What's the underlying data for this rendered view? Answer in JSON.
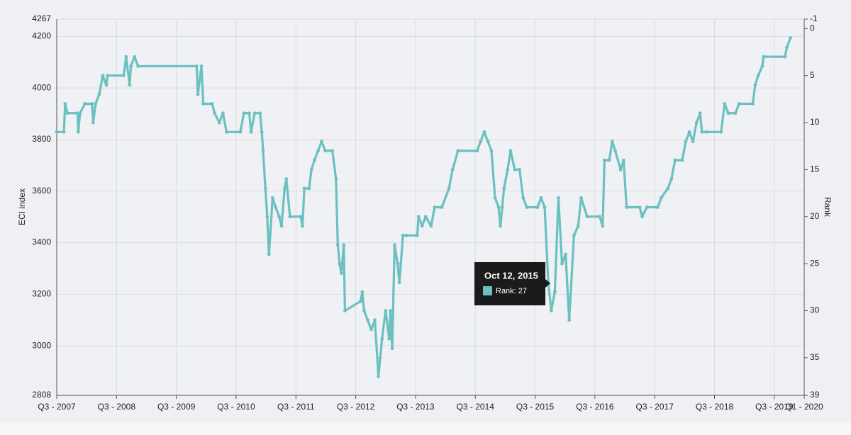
{
  "chart_data": {
    "type": "line",
    "ylabel": "ECI index",
    "y2label": "Rank",
    "xlim": [
      2007.5,
      2020.0
    ],
    "xticks": [
      {
        "value": 2007.5,
        "label": "Q3 - 2007"
      },
      {
        "value": 2008.5,
        "label": "Q3 - 2008"
      },
      {
        "value": 2009.5,
        "label": "Q3 - 2009"
      },
      {
        "value": 2010.5,
        "label": "Q3 - 2010"
      },
      {
        "value": 2011.5,
        "label": "Q3 - 2011"
      },
      {
        "value": 2012.5,
        "label": "Q3 - 2012"
      },
      {
        "value": 2013.5,
        "label": "Q3 - 2013"
      },
      {
        "value": 2014.5,
        "label": "Q3 - 2014"
      },
      {
        "value": 2015.5,
        "label": "Q3 - 2015"
      },
      {
        "value": 2016.5,
        "label": "Q3 - 2016"
      },
      {
        "value": 2017.5,
        "label": "Q3 - 2017"
      },
      {
        "value": 2018.5,
        "label": "Q3 - 2018"
      },
      {
        "value": 2019.5,
        "label": "Q3 - 2019"
      },
      {
        "value": 2020.0,
        "label": "Q1 - 2020"
      }
    ],
    "ylim": [
      2808,
      4267
    ],
    "yticks": [
      2808,
      3000,
      3200,
      3400,
      3600,
      3800,
      4000,
      4200,
      4267
    ],
    "y2lim": [
      39,
      -1
    ],
    "y2ticks": [
      -1,
      0,
      5,
      10,
      15,
      20,
      25,
      30,
      35,
      39
    ],
    "grid": true,
    "x": [
      2007.5,
      2007.62,
      2007.64,
      2007.68,
      2007.85,
      2007.86,
      2007.89,
      2007.97,
      2008.09,
      2008.11,
      2008.15,
      2008.21,
      2008.27,
      2008.33,
      2008.35,
      2008.62,
      2008.66,
      2008.72,
      2008.74,
      2008.8,
      2008.86,
      2009.84,
      2009.86,
      2009.92,
      2009.95,
      2010.1,
      2010.14,
      2010.22,
      2010.28,
      2010.34,
      2010.57,
      2010.63,
      2010.72,
      2010.75,
      2010.81,
      2010.9,
      2010.93,
      2010.95,
      2010.99,
      2011.02,
      2011.05,
      2011.11,
      2011.16,
      2011.22,
      2011.26,
      2011.31,
      2011.34,
      2011.4,
      2011.58,
      2011.61,
      2011.64,
      2011.72,
      2011.76,
      2011.81,
      2011.87,
      2011.93,
      2011.99,
      2012.11,
      2012.17,
      2012.2,
      2012.23,
      2012.26,
      2012.3,
      2012.32,
      2012.58,
      2012.61,
      2012.64,
      2012.7,
      2012.76,
      2012.82,
      2012.88,
      2012.91,
      2012.94,
      2013.0,
      2013.06,
      2013.08,
      2013.11,
      2013.15,
      2013.2,
      2013.23,
      2013.29,
      2013.35,
      2013.53,
      2013.55,
      2013.61,
      2013.67,
      2013.76,
      2013.82,
      2013.94,
      2014.06,
      2014.12,
      2014.21,
      2014.53,
      2014.59,
      2014.65,
      2014.71,
      2014.77,
      2014.83,
      2014.89,
      2014.92,
      2014.95,
      2014.98,
      2015.04,
      2015.09,
      2015.16,
      2015.24,
      2015.3,
      2015.36,
      2015.54,
      2015.6,
      2015.66,
      2015.72,
      2015.77,
      2015.83,
      2015.89,
      2015.95,
      2016.01,
      2016.07,
      2016.15,
      2016.22,
      2016.27,
      2016.37,
      2016.58,
      2016.63,
      2016.66,
      2016.74,
      2016.79,
      2016.84,
      2016.93,
      2016.98,
      2017.03,
      2017.25,
      2017.29,
      2017.37,
      2017.55,
      2017.61,
      2017.72,
      2017.78,
      2017.84,
      2017.96,
      2018.02,
      2018.08,
      2018.14,
      2018.2,
      2018.26,
      2018.29,
      2018.37,
      2018.61,
      2018.67,
      2018.73,
      2018.85,
      2018.91,
      2019.14,
      2019.18,
      2019.23,
      2019.3,
      2019.32,
      2019.68,
      2019.71,
      2019.77
    ],
    "series": [
      {
        "color": "#6cc0c0",
        "axis": "y2",
        "values": [
          11,
          11,
          8,
          9,
          9,
          11,
          9,
          8,
          8,
          10,
          8,
          7,
          5,
          6,
          5,
          5,
          3,
          6,
          4,
          3,
          4,
          4,
          7,
          4,
          8,
          8,
          9,
          10,
          9,
          11,
          11,
          9,
          9,
          11,
          9,
          9,
          11,
          13,
          17,
          20,
          24,
          18,
          19,
          20,
          21,
          17,
          16,
          20,
          20,
          21,
          17,
          17,
          15,
          14,
          13,
          12,
          13,
          13,
          16,
          23,
          25,
          26,
          23,
          30,
          29,
          28,
          30,
          31,
          32,
          31,
          37,
          35,
          33,
          30,
          33,
          30,
          34,
          23,
          25,
          27,
          22,
          22,
          22,
          20,
          21,
          20,
          21,
          19,
          19,
          17,
          15,
          13,
          13,
          12,
          11,
          12,
          13,
          18,
          19,
          21,
          19,
          17,
          15,
          13,
          15,
          15,
          18,
          19,
          19,
          18,
          19,
          27,
          30,
          28,
          18,
          25,
          24,
          31,
          22,
          21,
          18,
          20,
          20,
          21,
          14,
          14,
          12,
          13,
          15,
          14,
          19,
          19,
          20,
          19,
          19,
          18,
          17,
          16,
          14,
          14,
          12,
          11,
          12,
          10,
          9,
          11,
          11,
          11,
          8,
          9,
          9,
          8,
          8,
          6,
          5,
          4,
          3,
          3,
          2,
          1
        ]
      }
    ],
    "tooltip": {
      "title": "Oct 12, 2015",
      "label": "Rank: 27"
    }
  }
}
